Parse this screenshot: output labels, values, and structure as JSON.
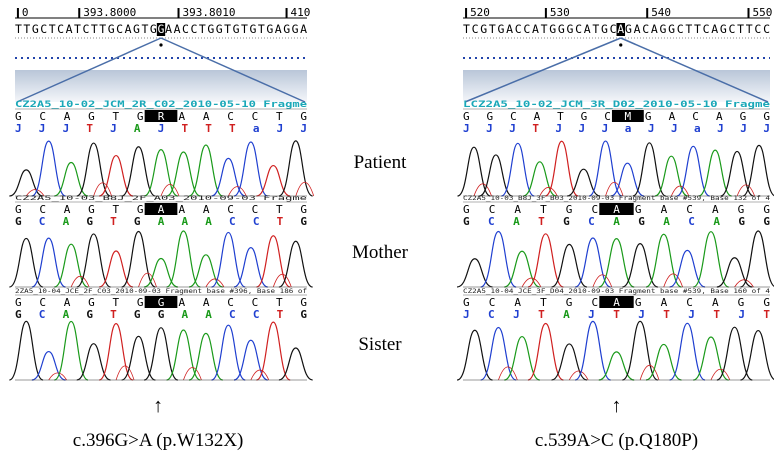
{
  "figure": {
    "panels": [
      {
        "ruler": [
          "0",
          "393.8000",
          "393.8010",
          "410"
        ],
        "sequence": [
          "TTGCTCATCTTGCAGTG",
          "G",
          "AACCTGGTGTGTGAGGA"
        ],
        "tracks": [
          {
            "label": "CZ2A5_10-02_JCM_2R_C02_2010-05-10 Fragme",
            "bases": [
              "G C A G T G",
              "R",
              "A A C C T G"
            ],
            "calls": "J J J T J A J T T T a J J"
          },
          {
            "label": "CZ2A5_10-03_B8J_2F_A03_2010-09-03 Fragme",
            "bases": [
              "G C A G T G",
              "A",
              "A A C C T G"
            ],
            "calls": "G C A G T G A A A C C T G"
          },
          {
            "label": "2ZA5_10-04_JCE_2F_C03_2010-09-03 Fragment base #396, Base 186 of",
            "bases": [
              "G C A G T G",
              "G",
              "A A C C T G"
            ],
            "calls": "G C A G T G G A A C C T G"
          }
        ],
        "caption": "c.396G>A (p.W132X)"
      },
      {
        "ruler": [
          "520",
          "530",
          "540",
          "550"
        ],
        "sequence": [
          "TCGTGACCATGGGCATGC",
          "A",
          "GACAGGCTTCAGCTTCC"
        ],
        "tracks": [
          {
            "label": "LCZ2A5_10-02_JCM_3R_D02_2010-05-10 Fragme",
            "bases": [
              "G G C A T G C",
              "M",
              "G A C A G G"
            ],
            "calls": "J J J T J J J a J J a J J J"
          },
          {
            "label": "CZ2A5_10-03_B8J_3F_B03_2010-09-03 Fragment base #539, Base 132 of 4",
            "bases": [
              "G C A T G C",
              "A",
              "G A C A G G"
            ],
            "calls": "G C A T G C A G A C A G G"
          },
          {
            "label": "CZ2A5_10-04_JCE_3F_D04_2010-09-03 Fragment base #539, Base 160 of 4",
            "bases": [
              "G C A T G C",
              "A",
              "G A C A G G"
            ],
            "calls": "J C J T A J T J T J T J T"
          }
        ],
        "caption": "c.539A>C (p.Q180P)"
      }
    ],
    "rows": [
      "Patient",
      "Mother",
      "Sister"
    ],
    "arrow": "↑"
  }
}
